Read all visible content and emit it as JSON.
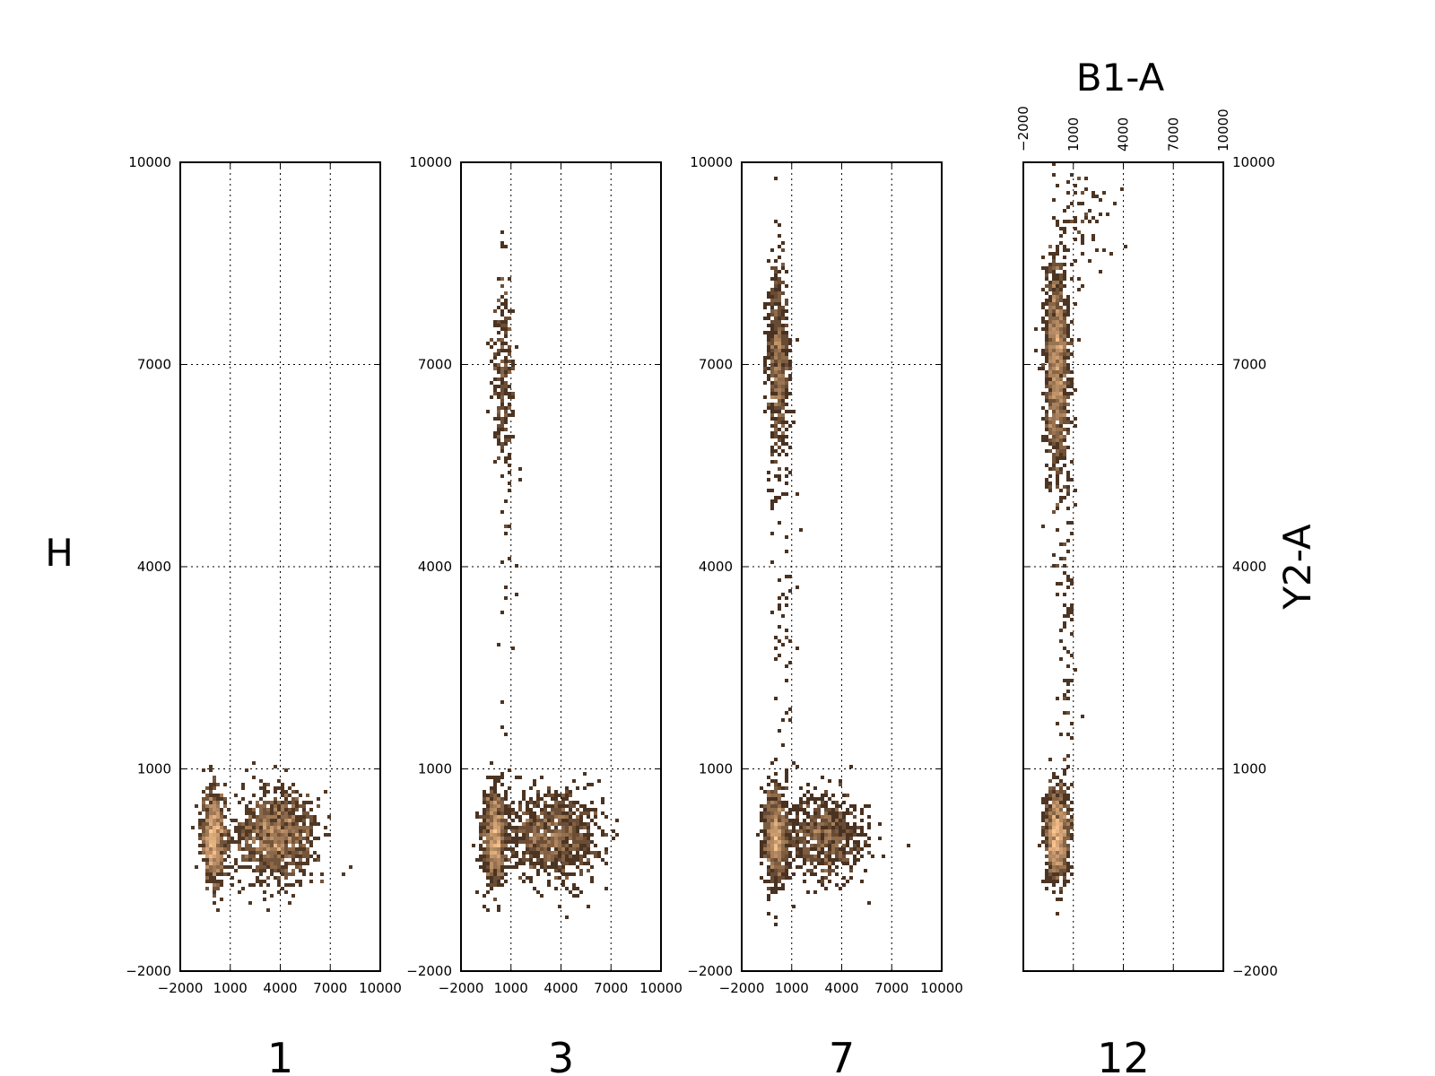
{
  "chart_data": [
    {
      "type": "heatmap",
      "title": "1",
      "xlim": [
        -2000,
        10000
      ],
      "ylim": [
        -2000,
        10000
      ],
      "xticks": [
        "−2000",
        "1000",
        "4000",
        "7000",
        "10000"
      ],
      "yticks": [
        "−2000",
        "1000",
        "4000",
        "7000",
        "10000"
      ],
      "grid": true,
      "clusters": [
        {
          "x": 0,
          "y": 0,
          "sx": 350,
          "sy": 350,
          "n": 700
        },
        {
          "x": 3800,
          "y": 0,
          "sx": 1200,
          "sy": 330,
          "n": 1000
        }
      ]
    },
    {
      "type": "heatmap",
      "title": "3",
      "xlim": [
        -2000,
        10000
      ],
      "ylim": [
        -2000,
        10000
      ],
      "xticks": [
        "−2000",
        "1000",
        "4000",
        "7000",
        "10000"
      ],
      "yticks": [
        "−2000",
        "1000",
        "4000",
        "7000",
        "10000"
      ],
      "grid": true,
      "clusters": [
        {
          "x": 0,
          "y": 0,
          "sx": 350,
          "sy": 350,
          "n": 700
        },
        {
          "x": 3500,
          "y": 0,
          "sx": 1400,
          "sy": 330,
          "n": 900
        },
        {
          "x": 500,
          "y": 7000,
          "sx": 300,
          "sy": 700,
          "n": 220
        },
        {
          "x": 700,
          "y": 4000,
          "sx": 400,
          "sy": 2500,
          "n": 40
        }
      ]
    },
    {
      "type": "heatmap",
      "title": "7",
      "xlim": [
        -2000,
        10000
      ],
      "ylim": [
        -2000,
        10000
      ],
      "xticks": [
        "−2000",
        "1000",
        "4000",
        "7000",
        "10000"
      ],
      "yticks": [
        "−2000",
        "1000",
        "4000",
        "7000",
        "10000"
      ],
      "grid": true,
      "clusters": [
        {
          "x": 0,
          "y": 0,
          "sx": 350,
          "sy": 350,
          "n": 700
        },
        {
          "x": 3000,
          "y": 0,
          "sx": 1200,
          "sy": 320,
          "n": 700
        },
        {
          "x": 200,
          "y": 7000,
          "sx": 300,
          "sy": 750,
          "n": 600
        },
        {
          "x": 500,
          "y": 3500,
          "sx": 400,
          "sy": 2500,
          "n": 80
        }
      ]
    },
    {
      "type": "heatmap",
      "title": "12",
      "xlabel": "B1-A",
      "ylabel": "Y2-A",
      "xlim": [
        -2000,
        10000
      ],
      "ylim": [
        -2000,
        10000
      ],
      "xticks": [
        "−2000",
        "1000",
        "4000",
        "7000",
        "10000"
      ],
      "yticks": [
        "−2000",
        "1000",
        "4000",
        "7000",
        "10000"
      ],
      "grid": true,
      "clusters": [
        {
          "x": 0,
          "y": 0,
          "sx": 350,
          "sy": 350,
          "n": 800
        },
        {
          "x": 0,
          "y": 7000,
          "sx": 350,
          "sy": 800,
          "n": 1100
        },
        {
          "x": 600,
          "y": 3500,
          "sx": 300,
          "sy": 2000,
          "n": 120
        },
        {
          "x": 1500,
          "y": 9300,
          "sx": 900,
          "sy": 600,
          "n": 80
        }
      ]
    }
  ],
  "left_label": "H"
}
